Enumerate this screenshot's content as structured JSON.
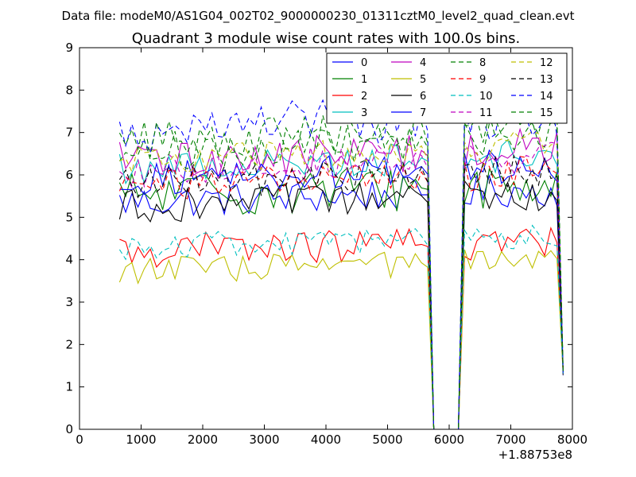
{
  "suptitle": "Data file: modeM0/AS1G04_002T02_9000000230_01311cztM0_level2_quad_clean.evt",
  "chart_data": {
    "type": "line",
    "title": "Quadrant 3 module wise count rates with 100.0s bins.",
    "xlabel": "",
    "ylabel": "",
    "xlim": [
      0,
      8000
    ],
    "ylim": [
      0,
      9
    ],
    "x_offset_label": "+1.88753e8",
    "x_ticks": [
      "0",
      "1000",
      "2000",
      "3000",
      "4000",
      "5000",
      "6000",
      "7000",
      "8000"
    ],
    "y_ticks": [
      "0",
      "1",
      "2",
      "3",
      "4",
      "5",
      "6",
      "7",
      "8",
      "9"
    ],
    "grid": false,
    "legend_position": "top-right",
    "legend_columns": 4,
    "gap": [
      5650,
      6250
    ],
    "x_start": 650,
    "x_end": 7850,
    "x_step": 100,
    "series": [
      {
        "name": "0",
        "color": "#0000ff",
        "dash": "solid",
        "level": 5.35,
        "spread": 0.25
      },
      {
        "name": "1",
        "color": "#008000",
        "dash": "solid",
        "level": 5.5,
        "spread": 0.35
      },
      {
        "name": "2",
        "color": "#ff0000",
        "dash": "solid",
        "level": 4.2,
        "spread": 0.25
      },
      {
        "name": "3",
        "color": "#00bfbf",
        "dash": "solid",
        "level": 6.15,
        "spread": 0.25
      },
      {
        "name": "4",
        "color": "#bf00bf",
        "dash": "solid",
        "level": 6.3,
        "spread": 0.3
      },
      {
        "name": "5",
        "color": "#bfbf00",
        "dash": "solid",
        "level": 3.75,
        "spread": 0.2
      },
      {
        "name": "6",
        "color": "#000000",
        "dash": "solid",
        "level": 5.25,
        "spread": 0.25
      },
      {
        "name": "7",
        "color": "#0000ff",
        "dash": "solid",
        "level": 5.9,
        "spread": 0.25
      },
      {
        "name": "8",
        "color": "#008000",
        "dash": "dashed",
        "level": 6.55,
        "spread": 0.3
      },
      {
        "name": "9",
        "color": "#ff0000",
        "dash": "dashed",
        "level": 5.75,
        "spread": 0.25
      },
      {
        "name": "10",
        "color": "#00bfbf",
        "dash": "dashed",
        "level": 4.3,
        "spread": 0.2
      },
      {
        "name": "11",
        "color": "#bf00bf",
        "dash": "dashed",
        "level": 6.1,
        "spread": 0.25
      },
      {
        "name": "12",
        "color": "#bfbf00",
        "dash": "dashed",
        "level": 6.3,
        "spread": 0.25
      },
      {
        "name": "13",
        "color": "#000000",
        "dash": "dashed",
        "level": 5.8,
        "spread": 0.25
      },
      {
        "name": "14",
        "color": "#0000ff",
        "dash": "dashed",
        "level": 7.05,
        "spread": 0.35
      },
      {
        "name": "15",
        "color": "#008000",
        "dash": "dashed",
        "level": 6.75,
        "spread": 0.3
      }
    ]
  }
}
